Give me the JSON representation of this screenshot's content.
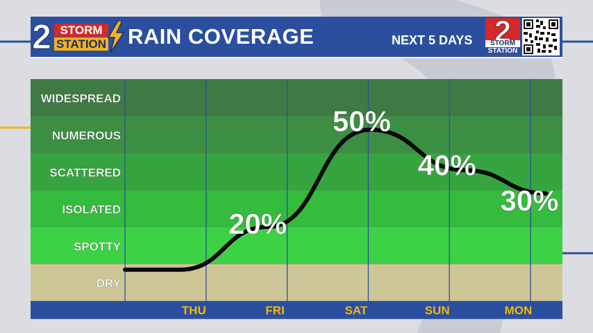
{
  "header": {
    "logo_number": "2",
    "logo_word_1": "STORM",
    "logo_word_2": "STATION",
    "title": "RAIN COVERAGE",
    "subtitle": "NEXT 5 DAYS",
    "badge_number": "2",
    "badge_word_1": "STORM",
    "badge_word_2": "STATION"
  },
  "colors": {
    "header_blue": "#2b4f9e",
    "accent_red": "#d32929",
    "accent_yellow": "#f2b21a",
    "curve": "#0a0a0a",
    "day_label": "#f5b800"
  },
  "chart_data": {
    "type": "line",
    "title": "RAIN COVERAGE",
    "categories": [
      "THU",
      "FRI",
      "SAT",
      "SUN",
      "MON"
    ],
    "coverage_levels": [
      "WIDESPREAD",
      "NUMEROUS",
      "SCATTERED",
      "ISOLATED",
      "SPOTTY",
      "DRY"
    ],
    "level_colors": [
      "#3f7a45",
      "#3c8f42",
      "#37a53f",
      "#35bb3d",
      "#3dd145",
      "#cfc698"
    ],
    "series": [
      {
        "values": [
          null,
          20,
          50,
          40,
          30
        ]
      }
    ],
    "data_labels": [
      "20%",
      "50%",
      "40%",
      "30%"
    ],
    "grid": true,
    "legend": "none"
  }
}
